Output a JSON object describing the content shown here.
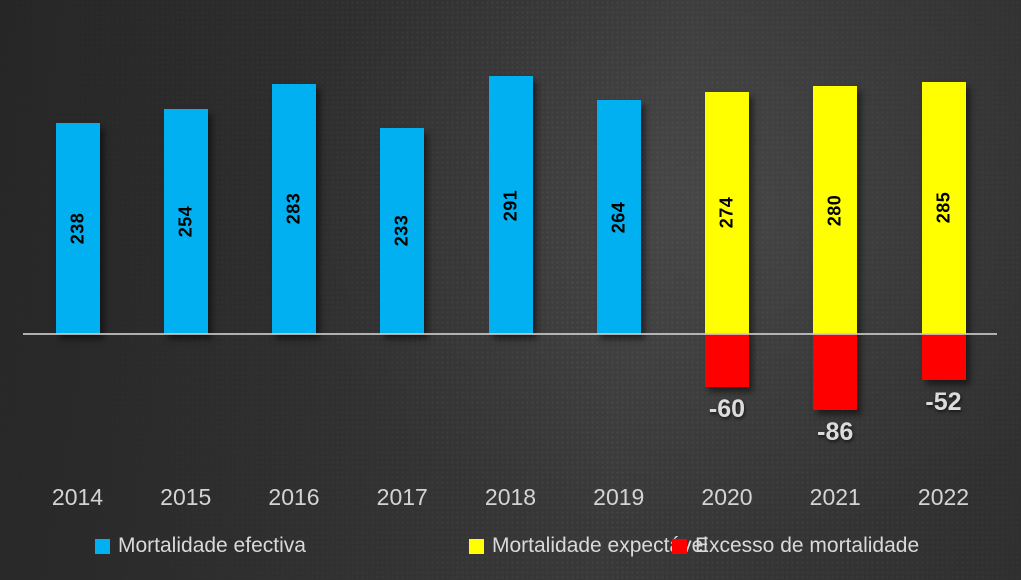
{
  "chart_data": {
    "type": "bar",
    "categories": [
      "2014",
      "2015",
      "2016",
      "2017",
      "2018",
      "2019",
      "2020",
      "2021",
      "2022"
    ],
    "series": [
      {
        "name": "Mortalidade efectiva",
        "color": "#00B0F0",
        "values": [
          238,
          254,
          283,
          233,
          291,
          264,
          null,
          null,
          null
        ]
      },
      {
        "name": "Mortalidade expectável",
        "color": "#FFFF00",
        "values": [
          null,
          null,
          null,
          null,
          null,
          null,
          274,
          280,
          285
        ]
      },
      {
        "name": "Excesso de mortalidade",
        "color": "#FF0000",
        "values": [
          null,
          null,
          null,
          null,
          null,
          null,
          -60,
          -86,
          -52
        ]
      }
    ],
    "title": "",
    "xlabel": "",
    "ylabel": "",
    "baseline": 0,
    "ylim": [
      -100,
      300
    ],
    "grid": false,
    "y_axis_ticks_visible": false,
    "legend_position": "bottom",
    "value_label_style": {
      "positive": "inside-bar, rotated bottom-up, bold black",
      "negative": "below bar, bold light gray"
    },
    "colors": {
      "axis_line": "#A9A9A9",
      "category_text": "#D4D4D4",
      "legend_text": "#D9D9D9",
      "negative_label_text": "#DCDCDC",
      "bar_label_text": "#000000",
      "background_dark": "#262626",
      "background_light": "#3A3A3A"
    }
  }
}
